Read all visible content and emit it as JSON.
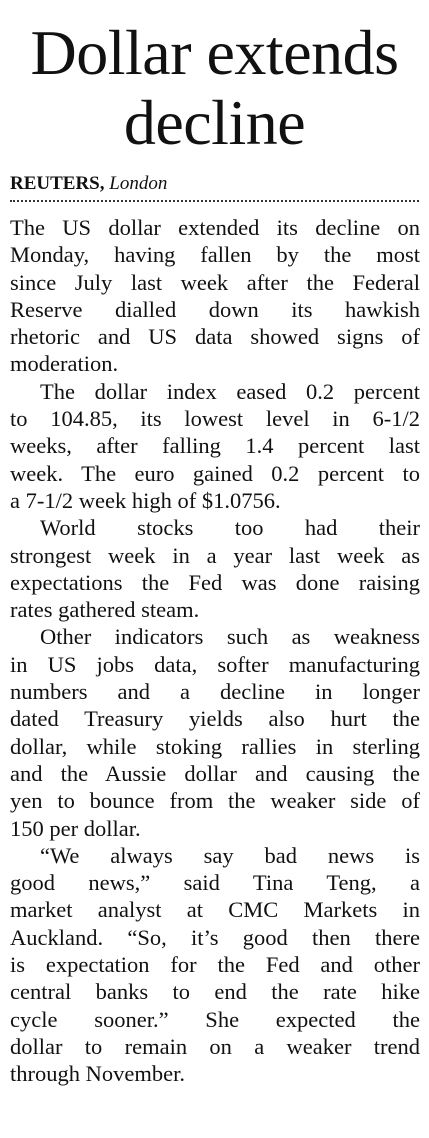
{
  "headline": "Dollar extends decline",
  "byline": {
    "source": "REUTERS,",
    "location": "London"
  },
  "paragraphs": [
    [
      "The US dollar extended its decline on",
      "Monday, having fallen by the most",
      "since July last week after the Federal",
      "Reserve dialled down its hawkish",
      "rhetoric and US data showed signs of",
      "moderation."
    ],
    [
      "The dollar index eased 0.2 percent",
      "to 104.85, its lowest level in 6-1/2",
      "weeks, after falling 1.4 percent last",
      "week. The euro gained 0.2 percent to",
      "a 7-1/2 week high of $1.0756."
    ],
    [
      "World stocks too had their",
      "strongest week in a year last week as",
      "expectations the Fed was done raising",
      "rates gathered steam."
    ],
    [
      "Other indicators such as weakness",
      "in US jobs data, softer manufacturing",
      "numbers and a decline in longer",
      "dated Treasury yields also hurt the",
      "dollar, while stoking rallies in sterling",
      "and the Aussie dollar and causing the",
      "yen to bounce from the weaker side of",
      "150 per dollar."
    ],
    [
      "“We always say bad news is",
      "good news,” said Tina Teng, a",
      "market analyst at CMC Markets in",
      "Auckland. “So, it’s good then there",
      "is expectation for the Fed and other",
      "central banks to end the rate hike",
      "cycle sooner.” She expected the",
      "dollar to remain on a weaker trend",
      "through November."
    ]
  ]
}
